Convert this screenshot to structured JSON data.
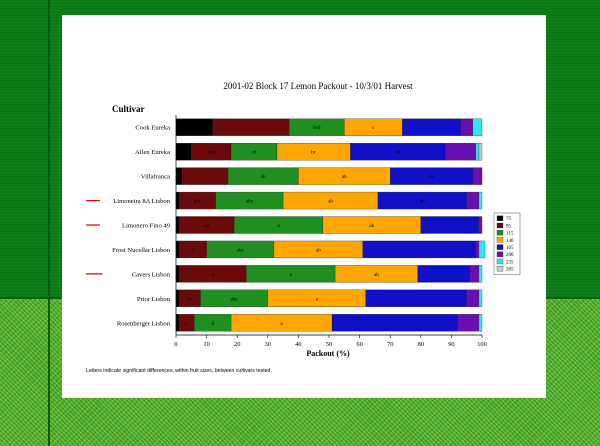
{
  "slide": {
    "footnote": "Letters indicate significant differences, within fruit sizes, between cultivars tested."
  },
  "chart_data": {
    "type": "bar",
    "orientation": "horizontal",
    "stacked": true,
    "title": "2001-02 Block 17 Lemon Packout - 10/3/01 Harvest",
    "ylabel": "Cultivar",
    "xlabel": "Packout (%)",
    "xlim": [
      0,
      100
    ],
    "xticks": [
      0,
      10,
      20,
      30,
      40,
      50,
      60,
      70,
      80,
      90,
      100
    ],
    "legend_position": "right",
    "categories": [
      "Cook Eureka",
      "Allen Eureka",
      "Villafranca",
      "Limoneira 8A Lisbon",
      "Limonero Fino 49",
      "Frost Nucellar Lisbon",
      "Cavers Lisbon",
      "Prior Lisbon",
      "Rosenberger Lisbon"
    ],
    "highlighted": [
      "Limoneira 8A Lisbon",
      "Limonero Fino 49",
      "Cavers Lisbon"
    ],
    "series": [
      {
        "name": "75",
        "color": "#000000",
        "values": [
          12,
          5,
          2,
          1,
          1,
          1,
          1,
          1,
          1
        ]
      },
      {
        "name": "95",
        "color": "#6b0a0a",
        "values": [
          25,
          13,
          15,
          12,
          18,
          9,
          22,
          7,
          5
        ]
      },
      {
        "name": "115",
        "color": "#1f8f1f",
        "values": [
          18,
          15,
          23,
          22,
          29,
          22,
          29,
          22,
          12
        ]
      },
      {
        "name": "140",
        "color": "#ffa500",
        "values": [
          19,
          24,
          30,
          31,
          32,
          29,
          27,
          32,
          33
        ]
      },
      {
        "name": "165",
        "color": "#1010c8",
        "values": [
          19,
          31,
          27,
          29,
          19,
          37,
          17,
          33,
          41
        ]
      },
      {
        "name": "200",
        "color": "#6a0fb0",
        "values": [
          4,
          10,
          3,
          4,
          1,
          1,
          3,
          4,
          7
        ]
      },
      {
        "name": "235",
        "color": "#2ee8f0",
        "values": [
          3,
          1,
          0,
          1,
          0,
          2,
          1,
          1,
          1
        ]
      },
      {
        "name": "285",
        "color": "#c8c8c8",
        "values": [
          0,
          1,
          0,
          0,
          0,
          0,
          0,
          0,
          0
        ]
      }
    ],
    "annotations": [
      [
        "",
        "",
        "bcd",
        "c",
        "",
        "",
        "",
        ""
      ],
      [
        "",
        "bcd",
        "cd",
        "bc",
        "ab",
        "",
        "",
        ""
      ],
      [
        "",
        "",
        "ab",
        "ab",
        "ab",
        "",
        "",
        ""
      ],
      [
        "",
        "abc",
        "abc",
        "ab",
        "ab",
        "",
        "",
        ""
      ],
      [
        "",
        "ab",
        "a",
        "ab",
        "",
        "",
        "",
        ""
      ],
      [
        "",
        "c",
        "abc",
        "ab",
        "",
        "",
        "",
        ""
      ],
      [
        "",
        "a",
        "a",
        "ab",
        "",
        "",
        "",
        ""
      ],
      [
        "",
        "bc",
        "abc",
        "a",
        "",
        "",
        "",
        ""
      ],
      [
        "",
        "c",
        "d",
        "a",
        "",
        "",
        "",
        ""
      ]
    ]
  }
}
